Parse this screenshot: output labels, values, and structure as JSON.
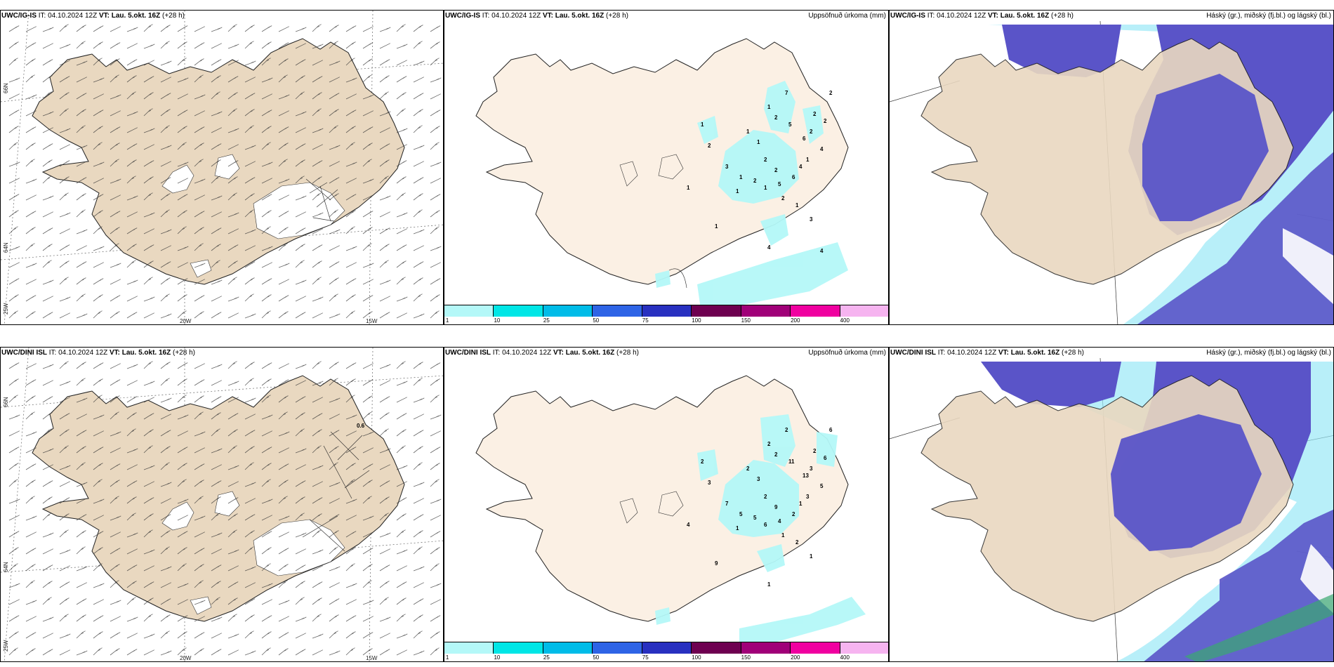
{
  "rows": [
    {
      "model": "UWC/IG-IS",
      "it": "04.10.2024 12Z",
      "vt": "Lau. 5.okt. 16Z",
      "lead": "(+28 h)",
      "precip_title": "Uppsöfnuð úrkoma (mm)",
      "cloud_title": "Háský (gr.), miðský (fj.bl.) og lágský (bl.)",
      "precip_values": [
        "1",
        "2",
        "1",
        "1",
        "2",
        "2",
        "1",
        "2",
        "7",
        "5",
        "6",
        "2",
        "2",
        "2",
        "4",
        "2",
        "3",
        "1",
        "2",
        "1",
        "5",
        "6",
        "4",
        "1",
        "2",
        "1",
        "3",
        "1",
        "1",
        "1",
        "4",
        "4"
      ]
    },
    {
      "model": "UWC/DINI ISL",
      "it": "04.10.2024 12Z",
      "vt": "Lau. 5.okt. 16Z",
      "lead": "(+28 h)",
      "precip_title": "Uppsöfnuð úrkoma (mm)",
      "cloud_title": "Háský (gr.), miðský (fj.bl.) og lágský (bl.)",
      "precip_values": [
        "2",
        "3",
        "2",
        "3",
        "2",
        "9",
        "2",
        "2",
        "2",
        "11",
        "13",
        "3",
        "2",
        "6",
        "5",
        "6",
        "7",
        "5",
        "5",
        "6",
        "4",
        "2",
        "1",
        "3",
        "1",
        "2",
        "1",
        "4",
        "1",
        "9",
        "1"
      ],
      "wind_label": "0.6"
    }
  ],
  "wind_axes": {
    "lat_labels": [
      "66N",
      "64N"
    ],
    "lon_labels": [
      "25W",
      "20W",
      "15W"
    ]
  },
  "colorbar": {
    "labels": [
      "1",
      "10",
      "25",
      "50",
      "75",
      "100",
      "150",
      "200",
      "400"
    ],
    "colors": [
      "#b4f8f8",
      "#00e6e6",
      "#00bce8",
      "#2e64e6",
      "#2830c0",
      "#6e0050",
      "#a00078",
      "#f000a0",
      "#f6b4f0"
    ]
  },
  "colors": {
    "land": "#e9d8c0",
    "land_light": "#fbf0e4",
    "precip_light": "#b4f8f8",
    "cloud_high": "#5a54c8",
    "cloud_mid": "#1e82e6",
    "cloud_low": "#9ae8f6"
  }
}
